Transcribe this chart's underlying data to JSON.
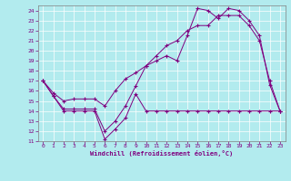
{
  "xlabel": "Windchill (Refroidissement éolien,°C)",
  "bg_color": "#b2ebee",
  "line_color": "#800080",
  "grid_color": "#ffffff",
  "ylim": [
    11,
    24.5
  ],
  "xlim": [
    -0.5,
    23.5
  ],
  "yticks": [
    11,
    12,
    13,
    14,
    15,
    16,
    17,
    18,
    19,
    20,
    21,
    22,
    23,
    24
  ],
  "xticks": [
    0,
    1,
    2,
    3,
    4,
    5,
    6,
    7,
    8,
    9,
    10,
    11,
    12,
    13,
    14,
    15,
    16,
    17,
    18,
    19,
    20,
    21,
    22,
    23
  ],
  "line1": {
    "x": [
      0,
      1,
      2,
      3,
      4,
      5,
      6,
      7,
      8,
      9,
      10,
      11,
      12,
      13,
      14,
      15,
      16,
      17,
      18,
      19,
      20,
      21,
      22,
      23
    ],
    "y": [
      17,
      15.5,
      14,
      14,
      14,
      14,
      11.2,
      12.2,
      13.3,
      15.7,
      14,
      14,
      14,
      14,
      14,
      14,
      14,
      14,
      14,
      14,
      14,
      14,
      14,
      14
    ]
  },
  "line2": {
    "x": [
      0,
      1,
      2,
      3,
      4,
      5,
      6,
      7,
      8,
      9,
      10,
      11,
      12,
      13,
      14,
      15,
      16,
      17,
      18,
      19,
      20,
      21,
      22,
      23
    ],
    "y": [
      17,
      15.5,
      14.2,
      14.2,
      14.2,
      14.2,
      12.0,
      13.0,
      14.5,
      16.5,
      18.5,
      19.0,
      19.5,
      19.0,
      21.5,
      24.2,
      24.0,
      23.2,
      24.2,
      24.0,
      23.0,
      21.5,
      16.6,
      14.0
    ]
  },
  "line3": {
    "x": [
      0,
      1,
      2,
      3,
      4,
      5,
      6,
      7,
      8,
      9,
      10,
      11,
      12,
      13,
      14,
      15,
      16,
      17,
      18,
      19,
      20,
      21,
      22,
      23
    ],
    "y": [
      17,
      15.8,
      15.0,
      15.2,
      15.2,
      15.2,
      14.5,
      16.0,
      17.2,
      17.8,
      18.5,
      19.5,
      20.5,
      21.0,
      22.0,
      22.5,
      22.5,
      23.5,
      23.5,
      23.5,
      22.5,
      21.0,
      17.0,
      14.0
    ]
  }
}
